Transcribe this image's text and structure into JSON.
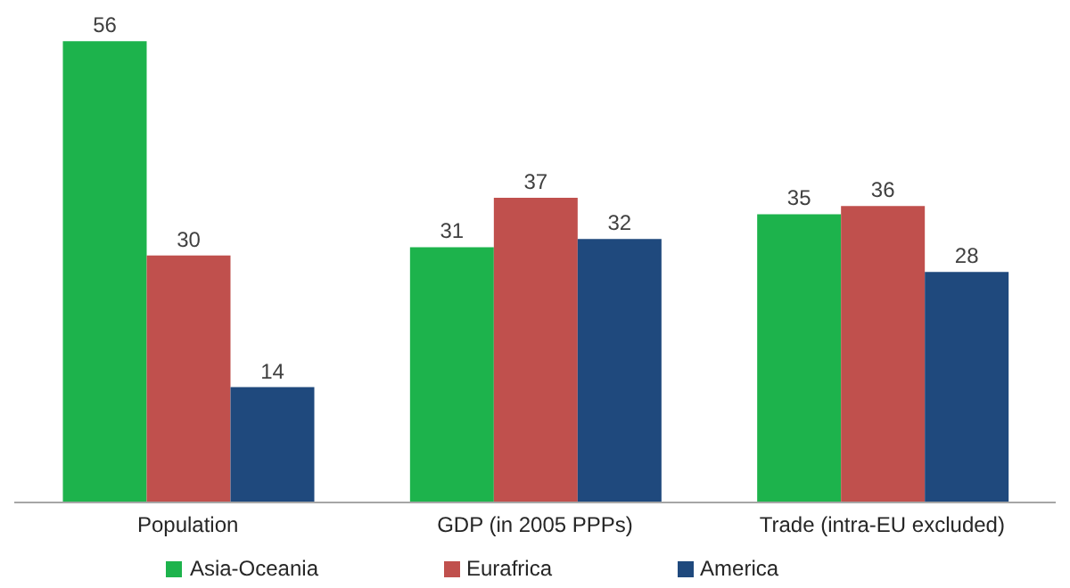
{
  "chart_data": {
    "type": "bar",
    "categories": [
      "Population",
      "GDP (in 2005 PPPs)",
      "Trade (intra-EU excluded)"
    ],
    "series": [
      {
        "name": "Asia-Oceania",
        "color": "#1db34c",
        "values": [
          56,
          31,
          35
        ]
      },
      {
        "name": "Eurafrica",
        "color": "#c0504d",
        "values": [
          30,
          37,
          36
        ]
      },
      {
        "name": "America",
        "color": "#1f497d",
        "values": [
          14,
          32,
          28
        ]
      }
    ],
    "data_labels": true,
    "legend": "bottom",
    "grid": false
  }
}
